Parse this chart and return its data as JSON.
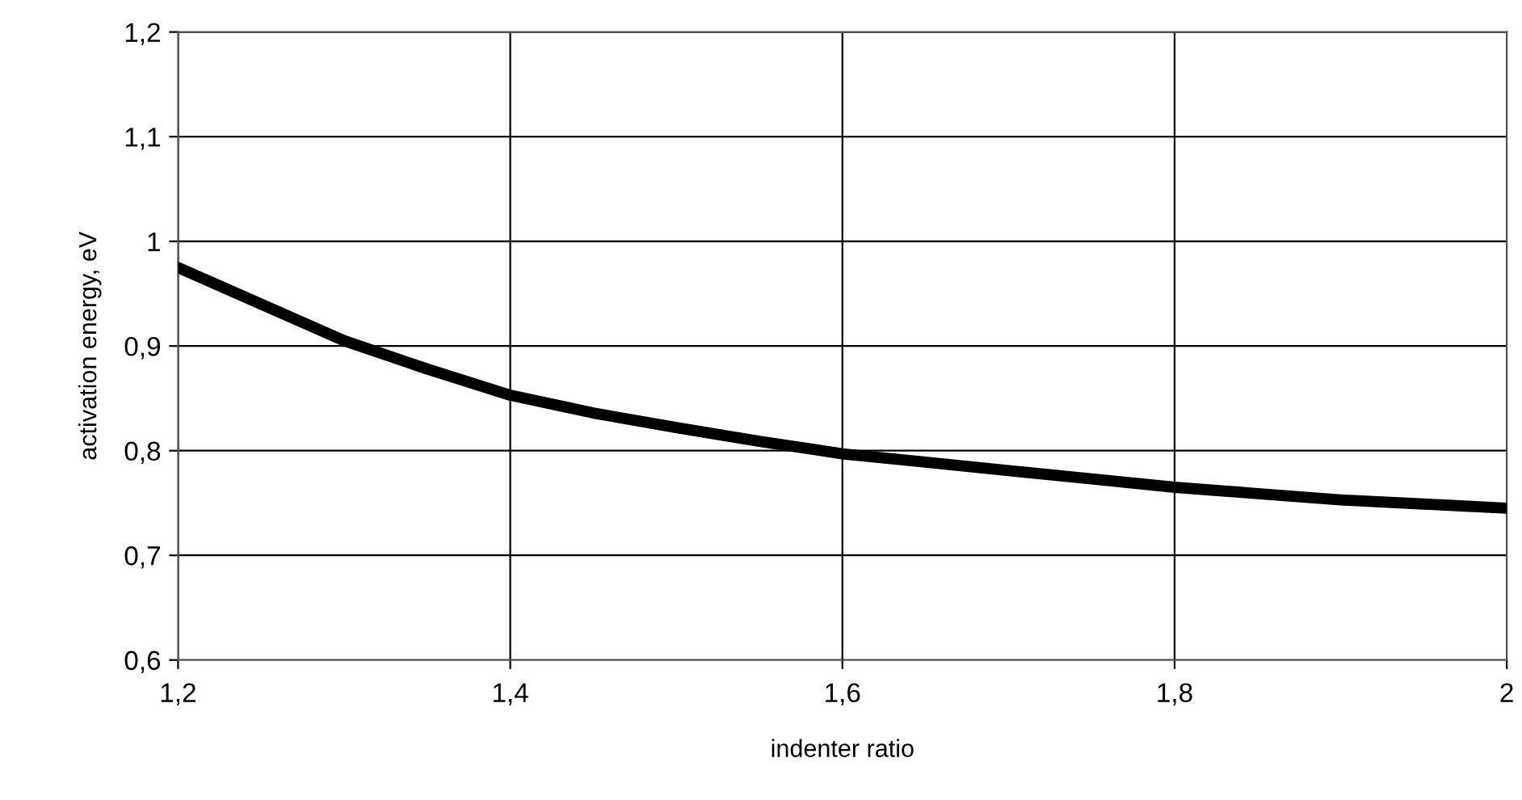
{
  "chart_data": {
    "type": "line",
    "xlabel": "indenter ratio",
    "ylabel": "activation energy, eV",
    "x": [
      1.2,
      1.25,
      1.3,
      1.35,
      1.4,
      1.45,
      1.5,
      1.55,
      1.6,
      1.65,
      1.7,
      1.75,
      1.8,
      1.85,
      1.9,
      1.95,
      2.0
    ],
    "series": [
      {
        "color": "#000000",
        "values": [
          0.975,
          0.94,
          0.905,
          0.878,
          0.853,
          0.836,
          0.822,
          0.809,
          0.797,
          0.789,
          0.781,
          0.773,
          0.765,
          0.759,
          0.753,
          0.749,
          0.745
        ]
      }
    ],
    "xlim": [
      1.2,
      2.0
    ],
    "xticks": [
      {
        "value": 1.2,
        "label": "1,2"
      },
      {
        "value": 1.4,
        "label": "1,4"
      },
      {
        "value": 1.6,
        "label": "1,6"
      },
      {
        "value": 1.8,
        "label": "1,8"
      },
      2
    ],
    "ylim": [
      0.6,
      1.2
    ],
    "yticks": [
      {
        "value": 0.6,
        "label": "0,6"
      },
      {
        "value": 0.7,
        "label": "0,7"
      },
      {
        "value": 0.8,
        "label": "0,8"
      },
      {
        "value": 0.9,
        "label": "0,9"
      },
      1,
      {
        "value": 1.1,
        "label": "1,1"
      },
      {
        "value": 1.2,
        "label": "1,2"
      }
    ],
    "grid": true,
    "line_style": "solid",
    "marker": "none"
  }
}
